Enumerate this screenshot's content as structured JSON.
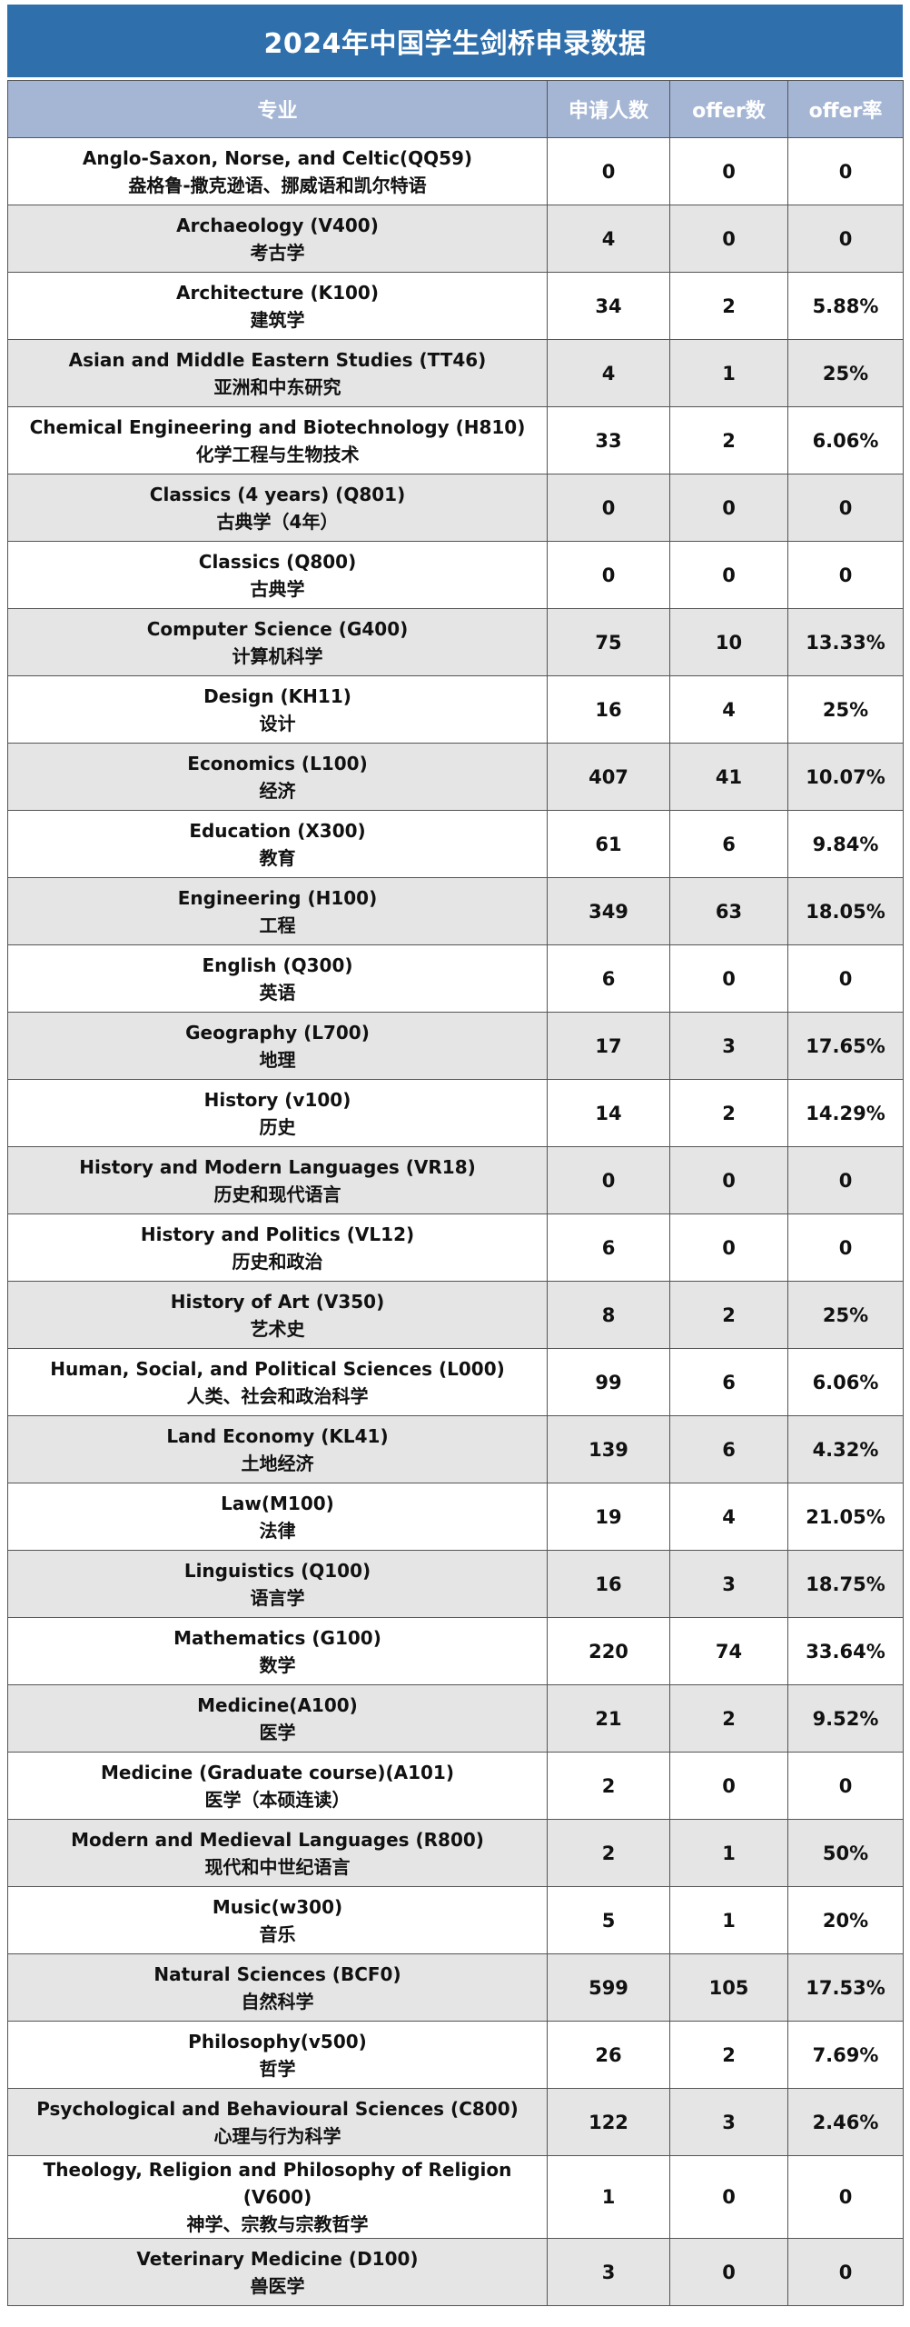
{
  "title": "2024年中国学生剑桥申录数据",
  "columns": {
    "major": "专业",
    "applicants": "申请人数",
    "offers": "offer数",
    "rate": "offer率"
  },
  "colors": {
    "title_bg": "#2f6fac",
    "header_bg": "#a5b6d5",
    "row_alt_bg": "#e5e5e5"
  },
  "rows": [
    {
      "en": "Anglo-Saxon, Norse, and Celtic(QQ59)",
      "zh": "盎格鲁-撒克逊语、挪威语和凯尔特语",
      "applicants": "0",
      "offers": "0",
      "rate": "0"
    },
    {
      "en": "Archaeology (V400)",
      "zh": "考古学",
      "applicants": "4",
      "offers": "0",
      "rate": "0"
    },
    {
      "en": "Architecture (K100)",
      "zh": "建筑学",
      "applicants": "34",
      "offers": "2",
      "rate": "5.88%"
    },
    {
      "en": "Asian and Middle Eastern Studies (TT46)",
      "zh": "亚洲和中东研究",
      "applicants": "4",
      "offers": "1",
      "rate": "25%"
    },
    {
      "en": "Chemical Engineering and Biotechnology (H810)",
      "zh": "化学工程与生物技术",
      "applicants": "33",
      "offers": "2",
      "rate": "6.06%"
    },
    {
      "en": "Classics (4 years) (Q801)",
      "zh": "古典学（4年）",
      "applicants": "0",
      "offers": "0",
      "rate": "0"
    },
    {
      "en": "Classics (Q800)",
      "zh": "古典学",
      "applicants": "0",
      "offers": "0",
      "rate": "0"
    },
    {
      "en": "Computer Science (G400)",
      "zh": "计算机科学",
      "applicants": "75",
      "offers": "10",
      "rate": "13.33%"
    },
    {
      "en": "Design (KH11)",
      "zh": "设计",
      "applicants": "16",
      "offers": "4",
      "rate": "25%"
    },
    {
      "en": "Economics (L100)",
      "zh": "经济",
      "applicants": "407",
      "offers": "41",
      "rate": "10.07%"
    },
    {
      "en": "Education (X300)",
      "zh": "教育",
      "applicants": "61",
      "offers": "6",
      "rate": "9.84%"
    },
    {
      "en": "Engineering (H100)",
      "zh": "工程",
      "applicants": "349",
      "offers": "63",
      "rate": "18.05%"
    },
    {
      "en": "English (Q300)",
      "zh": "英语",
      "applicants": "6",
      "offers": "0",
      "rate": "0"
    },
    {
      "en": "Geography (L700)",
      "zh": "地理",
      "applicants": "17",
      "offers": "3",
      "rate": "17.65%"
    },
    {
      "en": "History (v100)",
      "zh": "历史",
      "applicants": "14",
      "offers": "2",
      "rate": "14.29%"
    },
    {
      "en": "History and Modern Languages (VR18)",
      "zh": "历史和现代语言",
      "applicants": "0",
      "offers": "0",
      "rate": "0"
    },
    {
      "en": "History and Politics (VL12)",
      "zh": "历史和政治",
      "applicants": "6",
      "offers": "0",
      "rate": "0"
    },
    {
      "en": "History of Art (V350)",
      "zh": "艺术史",
      "applicants": "8",
      "offers": "2",
      "rate": "25%"
    },
    {
      "en": "Human, Social, and Political Sciences (L000)",
      "zh": "人类、社会和政治科学",
      "applicants": "99",
      "offers": "6",
      "rate": "6.06%"
    },
    {
      "en": "Land Economy (KL41)",
      "zh": "土地经济",
      "applicants": "139",
      "offers": "6",
      "rate": "4.32%"
    },
    {
      "en": "Law(M100)",
      "zh": "法律",
      "applicants": "19",
      "offers": "4",
      "rate": "21.05%"
    },
    {
      "en": "Linguistics (Q100)",
      "zh": "语言学",
      "applicants": "16",
      "offers": "3",
      "rate": "18.75%"
    },
    {
      "en": "Mathematics (G100)",
      "zh": "数学",
      "applicants": "220",
      "offers": "74",
      "rate": "33.64%"
    },
    {
      "en": "Medicine(A100)",
      "zh": "医学",
      "applicants": "21",
      "offers": "2",
      "rate": "9.52%"
    },
    {
      "en": "Medicine (Graduate course)(A101)",
      "zh": "医学（本硕连读）",
      "applicants": "2",
      "offers": "0",
      "rate": "0"
    },
    {
      "en": "Modern and Medieval Languages (R800)",
      "zh": "现代和中世纪语言",
      "applicants": "2",
      "offers": "1",
      "rate": "50%"
    },
    {
      "en": "Music(w300)",
      "zh": "音乐",
      "applicants": "5",
      "offers": "1",
      "rate": "20%"
    },
    {
      "en": "Natural Sciences (BCF0)",
      "zh": "自然科学",
      "applicants": "599",
      "offers": "105",
      "rate": "17.53%"
    },
    {
      "en": "Philosophy(v500)",
      "zh": "哲学",
      "applicants": "26",
      "offers": "2",
      "rate": "7.69%"
    },
    {
      "en": "Psychological and Behavioural Sciences (C800)",
      "zh": "心理与行为科学",
      "applicants": "122",
      "offers": "3",
      "rate": "2.46%"
    },
    {
      "en": "Theology, Religion and Philosophy of Religion (V600)",
      "zh": "神学、宗教与宗教哲学",
      "applicants": "1",
      "offers": "0",
      "rate": "0"
    },
    {
      "en": "Veterinary Medicine (D100)",
      "zh": "兽医学",
      "applicants": "3",
      "offers": "0",
      "rate": "0"
    }
  ]
}
